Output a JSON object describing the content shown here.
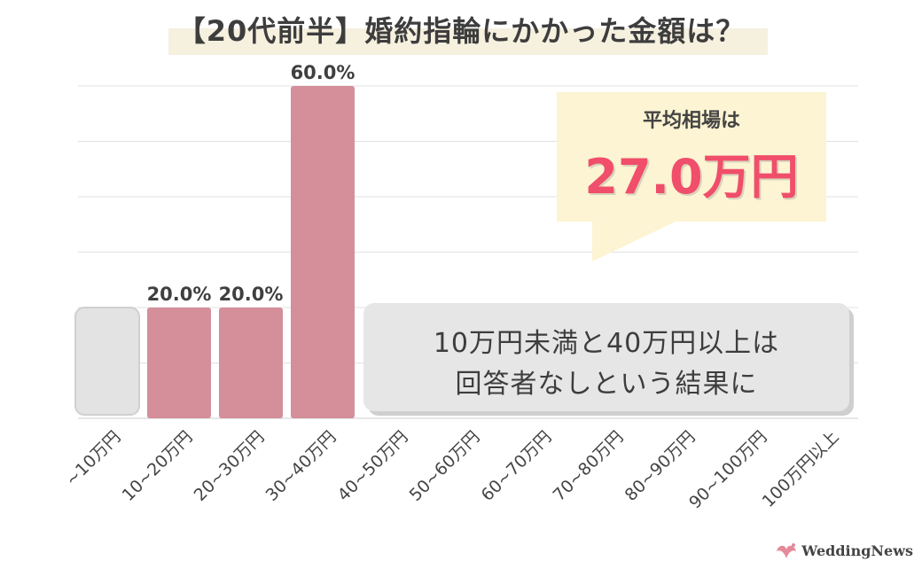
{
  "title": "【20代前半】婚約指輪にかかった金額は？",
  "average": {
    "label": "平均相場は",
    "value": "27.0万円"
  },
  "note": {
    "line1": "10万円未満と40万円以上は",
    "line2": "回答者なしという結果に"
  },
  "logo": {
    "icon": "bird-icon",
    "text": "WeddingNews"
  },
  "colors": {
    "bar": "#d48f9a",
    "zero_placeholder": "#e3e3e3",
    "average_value": "#f04e6a",
    "callout_bg": "#fcf4d2",
    "title_highlight": "#f6f0df",
    "grid": "#e2e2e2"
  },
  "chart_data": {
    "type": "bar",
    "title": "【20代前半】婚約指輪にかかった金額は？",
    "categories": [
      "~10万円",
      "10~20万円",
      "20~30万円",
      "30~40万円",
      "40~50万円",
      "50~60万円",
      "60~70万円",
      "70~80万円",
      "80~90万円",
      "90~100万円",
      "100万円以上"
    ],
    "values": [
      0,
      20.0,
      20.0,
      60.0,
      0,
      0,
      0,
      0,
      0,
      0,
      0
    ],
    "data_labels": [
      "",
      "20.0%",
      "20.0%",
      "60.0%",
      "",
      "",
      "",
      "",
      "",
      "",
      ""
    ],
    "unit": "%",
    "ylim": [
      0,
      60
    ],
    "grid": true,
    "legend": "none"
  }
}
